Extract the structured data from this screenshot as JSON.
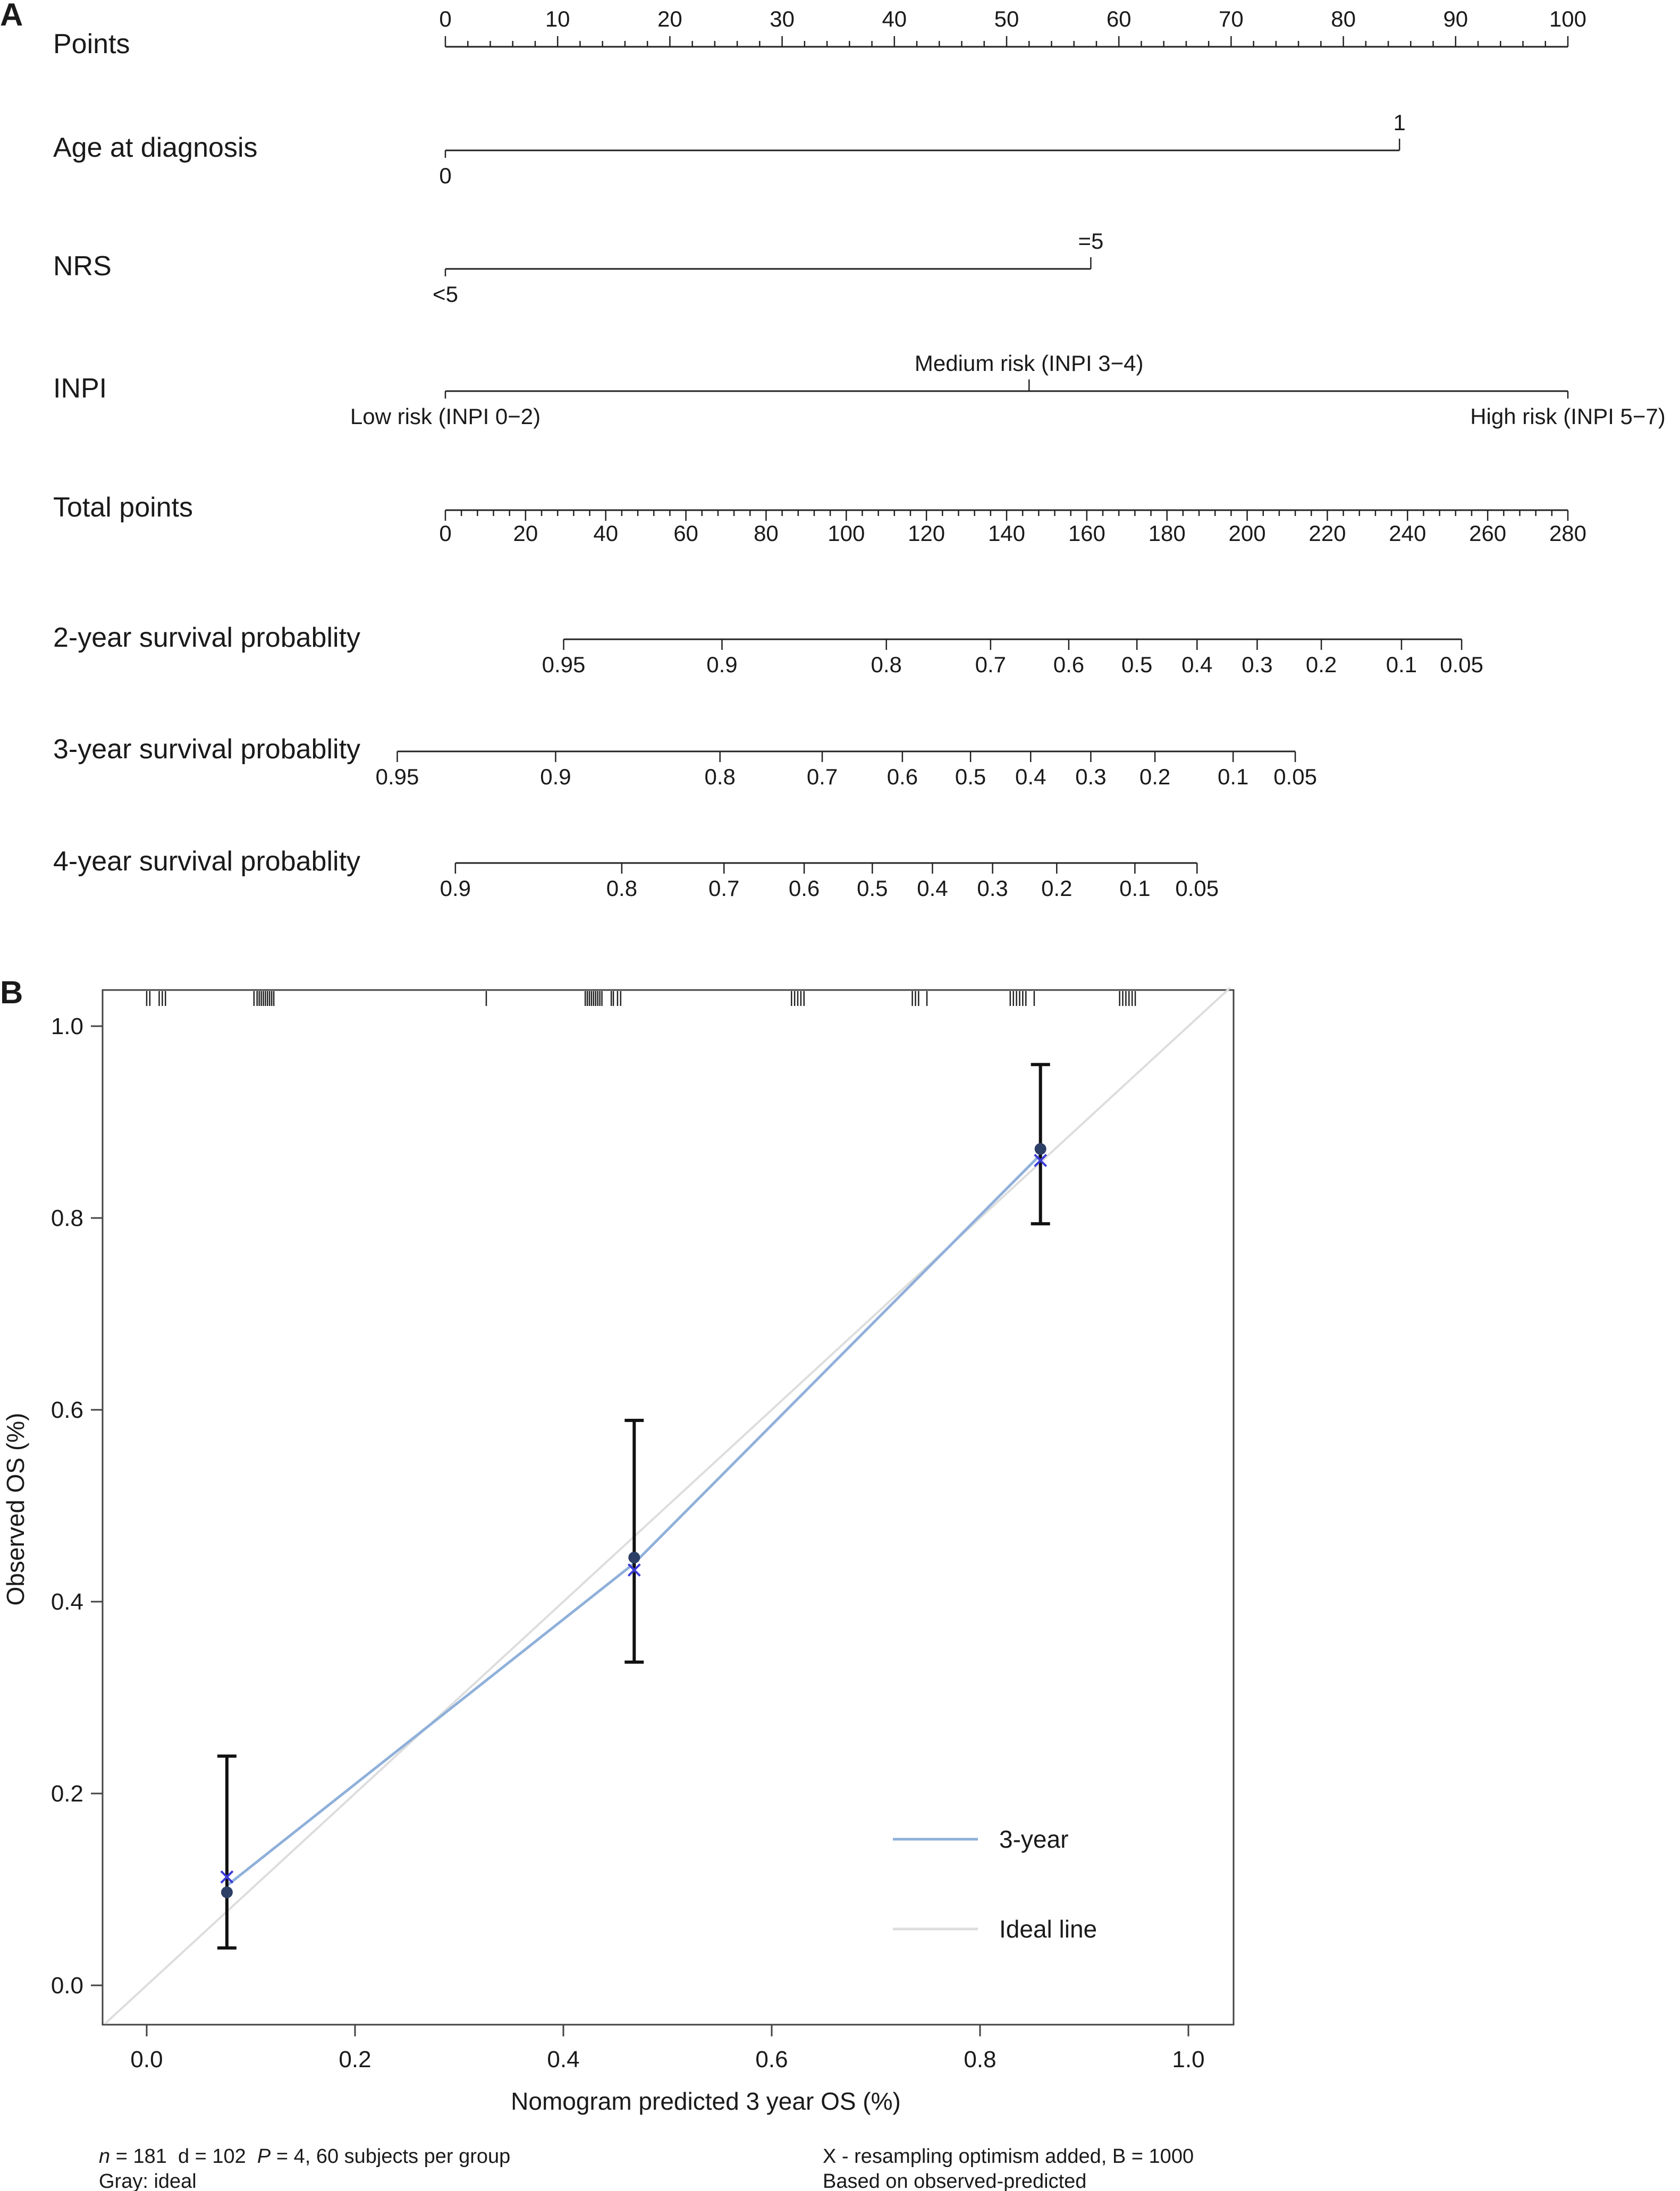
{
  "panel_a": {
    "label": "A",
    "scales": [
      {
        "id": "points",
        "name": "Points",
        "kind": "major_minor",
        "ticks": [
          "0",
          "10",
          "20",
          "30",
          "40",
          "50",
          "60",
          "70",
          "80",
          "90",
          "100"
        ],
        "tick_values": [
          0,
          10,
          20,
          30,
          40,
          50,
          60,
          70,
          80,
          90,
          100
        ],
        "minor_step": 2,
        "label_pos": "above",
        "range": [
          0,
          100
        ]
      },
      {
        "id": "age",
        "name": "Age at diagnosis",
        "kind": "categorical",
        "range": [
          0,
          85
        ],
        "categories": [
          {
            "label": "0",
            "points": 0,
            "pos": "below"
          },
          {
            "label": "1",
            "points": 85,
            "pos": "above"
          }
        ]
      },
      {
        "id": "nrs",
        "name": "NRS",
        "kind": "categorical",
        "range": [
          0,
          57.5
        ],
        "categories": [
          {
            "label": "<5",
            "points": 0,
            "pos": "below"
          },
          {
            "label": "=5",
            "points": 57.5,
            "pos": "above"
          }
        ]
      },
      {
        "id": "inpi",
        "name": "INPI",
        "kind": "categorical",
        "range": [
          0,
          100
        ],
        "categories": [
          {
            "label": "Low risk (INPI 0−2)",
            "points": 0,
            "pos": "below"
          },
          {
            "label": "Medium risk (INPI 3−4)",
            "points": 52,
            "pos": "above"
          },
          {
            "label": "High risk (INPI 5−7)",
            "points": 100,
            "pos": "below"
          }
        ]
      },
      {
        "id": "total",
        "name": "Total points",
        "kind": "major_minor",
        "ticks": [
          "0",
          "20",
          "40",
          "60",
          "80",
          "100",
          "120",
          "140",
          "160",
          "180",
          "200",
          "220",
          "240",
          "260",
          "280"
        ],
        "tick_values": [
          0,
          20,
          40,
          60,
          80,
          100,
          120,
          140,
          160,
          180,
          200,
          220,
          240,
          260,
          280
        ],
        "minor_step": 4,
        "label_pos": "below",
        "range": [
          0,
          280
        ]
      },
      {
        "id": "y2",
        "name": "2-year survival probablity",
        "kind": "probability",
        "range_total_points": [
          29.5,
          253.5
        ],
        "ticks": [
          {
            "label": "0.95",
            "total": 29.5
          },
          {
            "label": "0.9",
            "total": 69
          },
          {
            "label": "0.8",
            "total": 110
          },
          {
            "label": "0.7",
            "total": 136
          },
          {
            "label": "0.6",
            "total": 155.5
          },
          {
            "label": "0.5",
            "total": 172.5
          },
          {
            "label": "0.4",
            "total": 187.5
          },
          {
            "label": "0.3",
            "total": 202.5
          },
          {
            "label": "0.2",
            "total": 218.5
          },
          {
            "label": "0.1",
            "total": 238.5
          },
          {
            "label": "0.05",
            "total": 253.5
          }
        ]
      },
      {
        "id": "y3",
        "name": "3-year survival probablity",
        "kind": "probability",
        "range_total_points": [
          -12,
          212
        ],
        "ticks": [
          {
            "label": "0.95",
            "total": -12
          },
          {
            "label": "0.9",
            "total": 27.5
          },
          {
            "label": "0.8",
            "total": 68.5
          },
          {
            "label": "0.7",
            "total": 94
          },
          {
            "label": "0.6",
            "total": 114
          },
          {
            "label": "0.5",
            "total": 131
          },
          {
            "label": "0.4",
            "total": 146
          },
          {
            "label": "0.3",
            "total": 161
          },
          {
            "label": "0.2",
            "total": 177
          },
          {
            "label": "0.1",
            "total": 196.5
          },
          {
            "label": "0.05",
            "total": 212
          }
        ]
      },
      {
        "id": "y4",
        "name": "4-year survival probablity",
        "kind": "probability",
        "range_total_points": [
          2.5,
          187.5
        ],
        "ticks": [
          {
            "label": "0.9",
            "total": 2.5
          },
          {
            "label": "0.8",
            "total": 44
          },
          {
            "label": "0.7",
            "total": 69.5
          },
          {
            "label": "0.6",
            "total": 89.5
          },
          {
            "label": "0.5",
            "total": 106.5
          },
          {
            "label": "0.4",
            "total": 121.5
          },
          {
            "label": "0.3",
            "total": 136.5
          },
          {
            "label": "0.2",
            "total": 152.5
          },
          {
            "label": "0.1",
            "total": 172
          },
          {
            "label": "0.05",
            "total": 187.5
          }
        ]
      }
    ]
  },
  "panel_b": {
    "label": "B",
    "xlabel": "Nomogram predicted 3 year OS (%)",
    "ylabel": "Observed OS (%)",
    "xticks": [
      "0.0",
      "0.2",
      "0.4",
      "0.6",
      "0.8",
      "1.0"
    ],
    "xtick_values": [
      0.0,
      0.2,
      0.4,
      0.6,
      0.8,
      1.0
    ],
    "yticks": [
      "0.0",
      "0.2",
      "0.4",
      "0.6",
      "0.8",
      "1.0"
    ],
    "ytick_values": [
      0.0,
      0.2,
      0.4,
      0.6,
      0.8,
      1.0
    ],
    "footnote": {
      "n_label": "n",
      "stats": " = 181  d = 102  ",
      "p_label": "P",
      "group": " = 4, 60 subjects per group",
      "gray": "Gray: ideal",
      "resampling": "X - resampling optimism added, B = 1000",
      "based": "Based on observed-predicted"
    }
  },
  "chart_data": [
    {
      "type": "table",
      "variables": [
        {
          "name": "Age at diagnosis",
          "levels": [
            {
              "label": "0",
              "points": 0
            },
            {
              "label": "1",
              "points": 85
            }
          ]
        },
        {
          "name": "NRS",
          "levels": [
            {
              "label": "<5",
              "points": 0
            },
            {
              "label": "=5",
              "points": 57.5
            }
          ]
        },
        {
          "name": "INPI",
          "levels": [
            {
              "label": "Low risk (INPI 0−2)",
              "points": 0
            },
            {
              "label": "Medium risk (INPI 3−4)",
              "points": 52
            },
            {
              "label": "High risk (INPI 5−7)",
              "points": 100
            }
          ]
        }
      ],
      "points_axis": [
        0,
        100
      ],
      "total_points_axis": [
        0,
        280
      ],
      "survival_scales": [
        {
          "name": "2-year survival probablity",
          "probabilities": [
            0.95,
            0.9,
            0.8,
            0.7,
            0.6,
            0.5,
            0.4,
            0.3,
            0.2,
            0.1,
            0.05
          ],
          "total_points": [
            29.5,
            69,
            110,
            136,
            155.5,
            172.5,
            187.5,
            202.5,
            218.5,
            238.5,
            253.5
          ]
        },
        {
          "name": "3-year survival probablity",
          "probabilities": [
            0.95,
            0.9,
            0.8,
            0.7,
            0.6,
            0.5,
            0.4,
            0.3,
            0.2,
            0.1,
            0.05
          ],
          "total_points": [
            -12,
            27.5,
            68.5,
            94,
            114,
            131,
            146,
            161,
            177,
            196.5,
            212
          ]
        },
        {
          "name": "4-year survival probablity",
          "probabilities": [
            0.9,
            0.8,
            0.7,
            0.6,
            0.5,
            0.4,
            0.3,
            0.2,
            0.1,
            0.05
          ],
          "total_points": [
            2.5,
            44,
            69.5,
            89.5,
            106.5,
            121.5,
            136.5,
            152.5,
            172,
            187.5
          ]
        }
      ]
    },
    {
      "type": "line",
      "xlabel": "Nomogram predicted 3 year OS (%)",
      "ylabel": "Observed OS (%)",
      "xlim": [
        -0.04,
        1.04
      ],
      "ylim": [
        -0.04,
        1.04
      ],
      "grid": false,
      "legend": "bottom-right",
      "series": [
        {
          "name": "3-year",
          "color": "#8fb0da",
          "x": [
            0.077,
            0.468,
            0.858
          ],
          "y": [
            0.104,
            0.44,
            0.866
          ]
        },
        {
          "name": "Ideal line",
          "color": "#dddddd",
          "x": [
            -0.04,
            1.04
          ],
          "y": [
            -0.04,
            1.04
          ]
        }
      ],
      "observed": {
        "x": [
          0.077,
          0.468,
          0.858
        ],
        "y": [
          0.097,
          0.446,
          0.872
        ],
        "lower": [
          0.039,
          0.337,
          0.794
        ],
        "upper": [
          0.239,
          0.589,
          0.96
        ]
      },
      "corrected": {
        "x": [
          0.077,
          0.468,
          0.858
        ],
        "y": [
          0.113,
          0.433,
          0.86
        ],
        "color": "#3b3bd8"
      },
      "rug": [
        0.0,
        0.003,
        0.012,
        0.015,
        0.018,
        0.103,
        0.106,
        0.108,
        0.11,
        0.112,
        0.114,
        0.116,
        0.118,
        0.12,
        0.122,
        0.326,
        0.421,
        0.423,
        0.425,
        0.427,
        0.429,
        0.431,
        0.433,
        0.435,
        0.437,
        0.446,
        0.448,
        0.452,
        0.455,
        0.619,
        0.622,
        0.625,
        0.628,
        0.631,
        0.735,
        0.738,
        0.741,
        0.749,
        0.829,
        0.832,
        0.835,
        0.838,
        0.841,
        0.844,
        0.852,
        0.934,
        0.937,
        0.94,
        0.943,
        0.946,
        0.949
      ]
    }
  ]
}
